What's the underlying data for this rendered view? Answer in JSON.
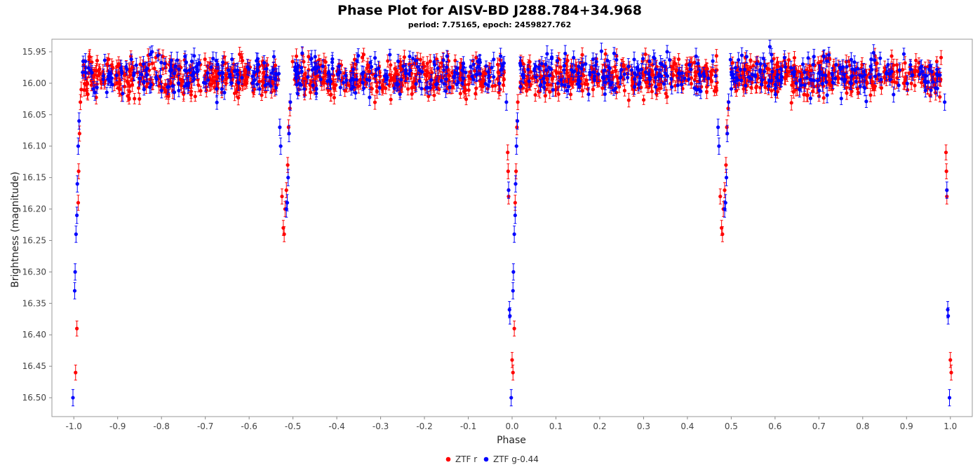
{
  "chart_data": {
    "type": "scatter",
    "title": "Phase Plot for AISV-BD J288.784+34.968",
    "subtitle": "period: 7.75165, epoch: 2459827.762",
    "xlabel": "Phase",
    "ylabel": "Brightness (magnitude)",
    "xlim": [
      -1.05,
      1.05
    ],
    "ylim": [
      16.53,
      15.93
    ],
    "y_inverted": true,
    "grid": false,
    "legend_position": "bottom-center",
    "x_ticks": [
      "-1.0",
      "-0.9",
      "-0.8",
      "-0.7",
      "-0.6",
      "-0.5",
      "-0.4",
      "-0.3",
      "-0.2",
      "-0.1",
      "0.0",
      "0.1",
      "0.2",
      "0.3",
      "0.4",
      "0.5",
      "0.6",
      "0.7",
      "0.8",
      "0.9",
      "1.0"
    ],
    "y_ticks": [
      "15.95",
      "16.00",
      "16.05",
      "16.10",
      "16.15",
      "16.20",
      "16.25",
      "16.30",
      "16.35",
      "16.40",
      "16.45",
      "16.50"
    ],
    "series": [
      {
        "name": "ZTF r",
        "color": "#ff0000",
        "baseline": 15.99,
        "scatter": 0.014,
        "error": 0.009,
        "points": [
          {
            "x": -0.993,
            "y": 16.39
          },
          {
            "x": -0.996,
            "y": 16.46
          },
          {
            "x": -0.99,
            "y": 16.19
          },
          {
            "x": -0.989,
            "y": 16.14
          },
          {
            "x": -0.987,
            "y": 16.08
          },
          {
            "x": -0.985,
            "y": 16.03
          },
          {
            "x": -0.983,
            "y": 16.01
          },
          {
            "x": -0.525,
            "y": 16.18
          },
          {
            "x": -0.522,
            "y": 16.23
          },
          {
            "x": -0.52,
            "y": 16.24
          },
          {
            "x": -0.518,
            "y": 16.2
          },
          {
            "x": -0.515,
            "y": 16.17
          },
          {
            "x": -0.512,
            "y": 16.13
          },
          {
            "x": -0.51,
            "y": 16.07
          },
          {
            "x": -0.507,
            "y": 16.04
          },
          {
            "x": -0.01,
            "y": 16.11
          },
          {
            "x": -0.009,
            "y": 16.14
          },
          {
            "x": -0.008,
            "y": 16.18
          },
          {
            "x": 0.0,
            "y": 16.44
          },
          {
            "x": 0.002,
            "y": 16.46
          },
          {
            "x": 0.005,
            "y": 16.39
          },
          {
            "x": 0.007,
            "y": 16.19
          },
          {
            "x": 0.009,
            "y": 16.14
          },
          {
            "x": 0.011,
            "y": 16.07
          },
          {
            "x": 0.013,
            "y": 16.03
          },
          {
            "x": 0.475,
            "y": 16.18
          },
          {
            "x": 0.478,
            "y": 16.23
          },
          {
            "x": 0.48,
            "y": 16.24
          },
          {
            "x": 0.482,
            "y": 16.2
          },
          {
            "x": 0.485,
            "y": 16.17
          },
          {
            "x": 0.488,
            "y": 16.13
          },
          {
            "x": 0.49,
            "y": 16.07
          },
          {
            "x": 0.493,
            "y": 16.04
          },
          {
            "x": 0.99,
            "y": 16.11
          },
          {
            "x": 0.991,
            "y": 16.14
          },
          {
            "x": 0.992,
            "y": 16.18
          },
          {
            "x": 1.0,
            "y": 16.44
          },
          {
            "x": 1.002,
            "y": 16.46
          }
        ]
      },
      {
        "name": "ZTF g-0.44",
        "color": "#0000ff",
        "baseline": 15.985,
        "scatter": 0.016,
        "error": 0.01,
        "points": [
          {
            "x": -1.002,
            "y": 16.5
          },
          {
            "x": -0.998,
            "y": 16.33
          },
          {
            "x": -0.997,
            "y": 16.3
          },
          {
            "x": -0.995,
            "y": 16.24
          },
          {
            "x": -0.993,
            "y": 16.21
          },
          {
            "x": -0.992,
            "y": 16.16
          },
          {
            "x": -0.99,
            "y": 16.1
          },
          {
            "x": -0.988,
            "y": 16.06
          },
          {
            "x": -0.53,
            "y": 16.07
          },
          {
            "x": -0.528,
            "y": 16.1
          },
          {
            "x": -0.515,
            "y": 16.2
          },
          {
            "x": -0.513,
            "y": 16.19
          },
          {
            "x": -0.511,
            "y": 16.15
          },
          {
            "x": -0.509,
            "y": 16.08
          },
          {
            "x": -0.506,
            "y": 16.03
          },
          {
            "x": -0.013,
            "y": 16.03
          },
          {
            "x": -0.008,
            "y": 16.17
          },
          {
            "x": -0.006,
            "y": 16.36
          },
          {
            "x": -0.005,
            "y": 16.37
          },
          {
            "x": -0.002,
            "y": 16.5
          },
          {
            "x": 0.002,
            "y": 16.33
          },
          {
            "x": 0.003,
            "y": 16.3
          },
          {
            "x": 0.005,
            "y": 16.24
          },
          {
            "x": 0.007,
            "y": 16.21
          },
          {
            "x": 0.008,
            "y": 16.16
          },
          {
            "x": 0.01,
            "y": 16.1
          },
          {
            "x": 0.012,
            "y": 16.06
          },
          {
            "x": 0.47,
            "y": 16.07
          },
          {
            "x": 0.472,
            "y": 16.1
          },
          {
            "x": 0.485,
            "y": 16.2
          },
          {
            "x": 0.487,
            "y": 16.19
          },
          {
            "x": 0.489,
            "y": 16.15
          },
          {
            "x": 0.491,
            "y": 16.08
          },
          {
            "x": 0.494,
            "y": 16.03
          },
          {
            "x": 0.987,
            "y": 16.03
          },
          {
            "x": 0.992,
            "y": 16.17
          },
          {
            "x": 0.994,
            "y": 16.36
          },
          {
            "x": 0.995,
            "y": 16.37
          },
          {
            "x": 0.998,
            "y": 16.5
          }
        ]
      }
    ],
    "flat_segments": [
      [
        -0.98,
        -0.532
      ],
      [
        -0.502,
        -0.018
      ],
      [
        0.018,
        0.468
      ],
      [
        0.498,
        0.982
      ]
    ]
  }
}
